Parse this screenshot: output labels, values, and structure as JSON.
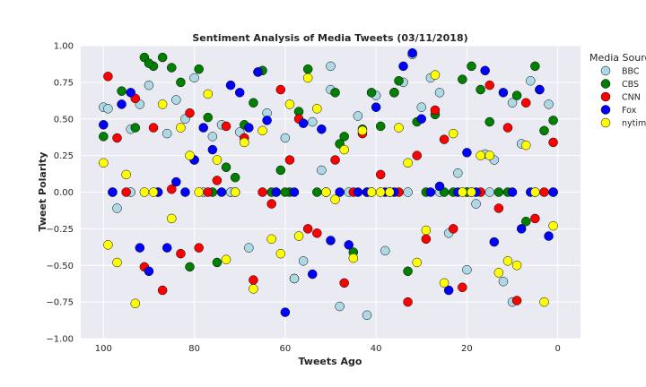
{
  "chart_data": {
    "type": "scatter",
    "title": "Sentiment Analysis of Media Tweets (03/11/2018)",
    "xlabel": "Tweets Ago",
    "ylabel": "Tweet Polarity",
    "xlim": [
      105,
      -5
    ],
    "ylim": [
      -1.0,
      1.0
    ],
    "x_ticks": [
      100,
      80,
      60,
      40,
      20,
      0
    ],
    "y_ticks": [
      -1.0,
      -0.75,
      -0.5,
      -0.25,
      0.0,
      0.25,
      0.5,
      0.75,
      1.0
    ],
    "x_tick_labels": [
      "100",
      "80",
      "60",
      "40",
      "20",
      "0"
    ],
    "y_tick_labels": [
      "−1.00",
      "−0.75",
      "−0.50",
      "−0.25",
      "0.00",
      "0.25",
      "0.50",
      "0.75",
      "1.00"
    ],
    "grid": true,
    "legend": {
      "title": "Media Sources",
      "placement": "outside-right"
    },
    "series": [
      {
        "name": "BBC",
        "color": "#add8e6",
        "x": [
          100,
          99,
          97,
          94,
          92,
          90,
          88,
          86,
          84,
          82,
          80,
          78,
          76,
          74,
          72,
          70,
          68,
          66,
          64,
          62,
          60,
          58,
          56,
          54,
          52,
          50,
          48,
          46,
          44,
          42,
          40,
          38,
          36,
          34,
          32,
          30,
          28,
          26,
          24,
          22,
          20,
          18,
          16,
          14,
          12,
          10,
          8,
          6,
          4,
          2,
          1,
          94,
          80,
          72,
          58,
          50,
          42,
          33,
          26,
          20,
          15,
          10,
          5
        ],
        "y": [
          0.58,
          0.57,
          -0.11,
          0.43,
          0.6,
          0.73,
          0.0,
          0.4,
          0.63,
          0.5,
          0.78,
          0.0,
          0.38,
          0.46,
          0.0,
          0.41,
          -0.38,
          0.82,
          0.54,
          0.0,
          0.37,
          -0.59,
          -0.47,
          0.48,
          0.15,
          0.7,
          -0.78,
          0.0,
          0.52,
          -0.84,
          0.66,
          -0.4,
          0.68,
          0.75,
          0.94,
          0.58,
          0.78,
          0.68,
          -0.28,
          0.13,
          -0.53,
          -0.08,
          0.26,
          0.22,
          -0.61,
          0.61,
          0.33,
          0.76,
          0.7,
          0.6,
          0.0,
          0.0,
          0.22,
          0.0,
          -0.59,
          0.86,
          0.0,
          0.0,
          0.0,
          0.0,
          0.0,
          -0.75,
          0.0
        ]
      },
      {
        "name": "CBS",
        "color": "#008000",
        "x": [
          100,
          98,
          96,
          93,
          91,
          89,
          87,
          85,
          83,
          81,
          79,
          77,
          75,
          73,
          71,
          69,
          67,
          65,
          63,
          61,
          59,
          57,
          55,
          53,
          51,
          49,
          47,
          45,
          43,
          41,
          39,
          37,
          35,
          33,
          31,
          29,
          27,
          25,
          23,
          21,
          19,
          17,
          15,
          13,
          11,
          9,
          7,
          5,
          3,
          1,
          90,
          76,
          60,
          48,
          36,
          20
        ],
        "y": [
          0.38,
          0.0,
          0.69,
          0.44,
          0.92,
          0.86,
          0.92,
          0.85,
          0.75,
          -0.51,
          0.84,
          0.51,
          -0.48,
          0.17,
          0.1,
          0.46,
          0.61,
          0.83,
          0.0,
          0.15,
          0.0,
          0.55,
          0.84,
          0.0,
          0.0,
          0.68,
          0.38,
          -0.41,
          0.43,
          0.68,
          0.45,
          0.0,
          0.76,
          -0.54,
          0.48,
          0.0,
          0.53,
          0.0,
          0.0,
          0.77,
          0.86,
          0.7,
          0.48,
          0.0,
          0.0,
          0.66,
          -0.2,
          0.86,
          0.42,
          0.49,
          0.88,
          0.0,
          0.0,
          0.33,
          0.68,
          0.0
        ]
      },
      {
        "name": "CNN",
        "color": "#ff0000",
        "x": [
          99,
          97,
          95,
          93,
          91,
          89,
          87,
          85,
          83,
          81,
          79,
          77,
          75,
          73,
          71,
          69,
          67,
          65,
          63,
          61,
          59,
          57,
          55,
          53,
          51,
          49,
          47,
          45,
          43,
          41,
          39,
          37,
          35,
          33,
          31,
          29,
          27,
          25,
          23,
          21,
          19,
          17,
          15,
          13,
          11,
          9,
          7,
          5,
          3,
          1
        ],
        "y": [
          0.79,
          0.37,
          0.0,
          0.64,
          -0.51,
          0.44,
          -0.67,
          0.02,
          -0.42,
          0.54,
          -0.38,
          0.0,
          0.08,
          0.45,
          0.0,
          0.37,
          -0.6,
          0.0,
          -0.08,
          0.7,
          0.22,
          0.5,
          -0.25,
          -0.28,
          0.0,
          0.22,
          -0.62,
          0.0,
          0.4,
          0.0,
          0.12,
          0.0,
          0.0,
          -0.75,
          0.25,
          -0.32,
          0.56,
          0.36,
          -0.25,
          -0.65,
          0.0,
          0.0,
          0.73,
          -0.11,
          0.44,
          -0.74,
          0.61,
          -0.18,
          0.0,
          0.34
        ]
      },
      {
        "name": "Fox",
        "color": "#0000ff",
        "x": [
          100,
          98,
          96,
          94,
          92,
          90,
          88,
          86,
          84,
          82,
          80,
          78,
          76,
          74,
          72,
          70,
          68,
          66,
          64,
          62,
          60,
          58,
          56,
          54,
          52,
          50,
          48,
          46,
          44,
          42,
          40,
          38,
          36,
          34,
          32,
          30,
          28,
          26,
          24,
          22,
          20,
          18,
          16,
          14,
          12,
          10,
          8,
          6,
          4,
          2,
          1
        ],
        "y": [
          0.46,
          0.0,
          0.6,
          0.68,
          -0.38,
          -0.54,
          0.0,
          -0.38,
          0.07,
          0.0,
          0.22,
          0.44,
          0.29,
          0.0,
          0.73,
          0.68,
          0.44,
          0.82,
          0.49,
          0.0,
          -0.82,
          0.0,
          0.47,
          -0.56,
          0.43,
          -0.33,
          0.0,
          -0.36,
          0.0,
          0.0,
          0.58,
          0.0,
          0.0,
          0.86,
          0.95,
          0.5,
          0.0,
          0.04,
          -0.67,
          0.0,
          0.27,
          0.0,
          0.83,
          -0.34,
          0.68,
          0.0,
          -0.25,
          0.0,
          0.7,
          -0.3,
          0.0
        ]
      },
      {
        "name": "nytimes",
        "color": "#ffff00",
        "x": [
          100,
          99,
          97,
          95,
          93,
          91,
          89,
          87,
          85,
          83,
          81,
          79,
          77,
          75,
          73,
          71,
          69,
          67,
          65,
          63,
          61,
          59,
          57,
          55,
          53,
          51,
          49,
          47,
          45,
          43,
          41,
          39,
          37,
          35,
          33,
          31,
          29,
          27,
          25,
          23,
          21,
          19,
          17,
          15,
          13,
          11,
          9,
          7,
          5,
          3,
          1
        ],
        "y": [
          0.2,
          -0.36,
          -0.48,
          0.12,
          -0.76,
          0.0,
          0.0,
          0.6,
          -0.18,
          0.44,
          0.25,
          0.0,
          0.67,
          0.22,
          -0.46,
          0.0,
          0.34,
          -0.66,
          0.42,
          -0.32,
          -0.42,
          0.6,
          -0.3,
          0.78,
          0.57,
          0.0,
          -0.05,
          0.29,
          -0.45,
          0.42,
          0.0,
          0.0,
          0.0,
          0.44,
          0.2,
          -0.48,
          -0.26,
          0.8,
          -0.62,
          0.4,
          0.0,
          0.0,
          0.25,
          0.25,
          -0.55,
          -0.47,
          -0.5,
          0.32,
          0.0,
          -0.75,
          -0.23
        ]
      }
    ]
  }
}
